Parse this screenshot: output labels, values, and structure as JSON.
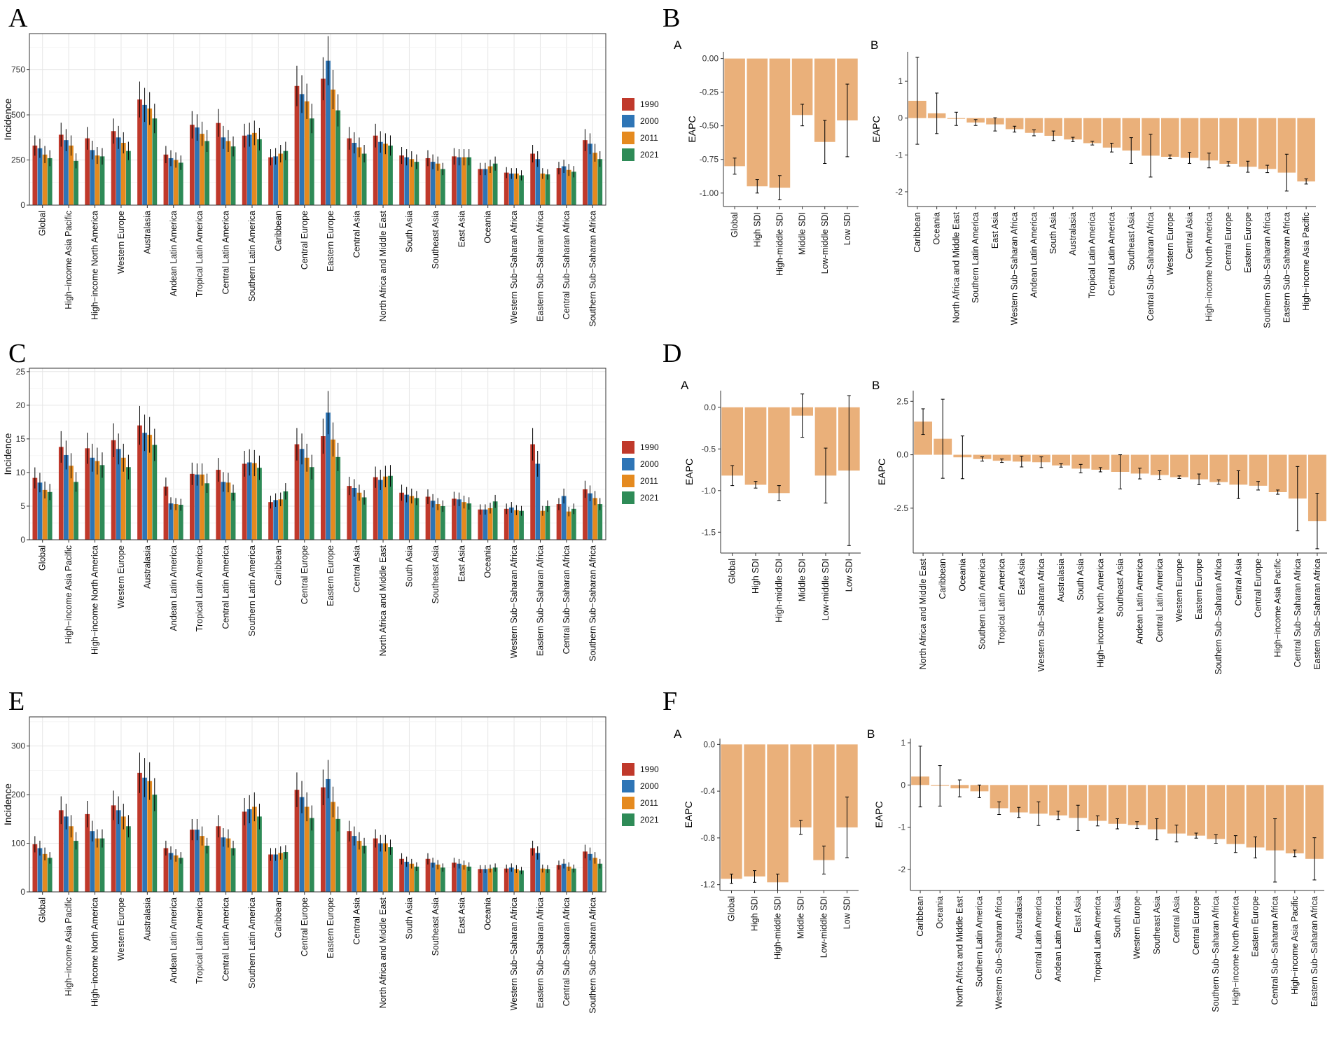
{
  "colors": {
    "1990": "#c0392b",
    "2000": "#2e75b6",
    "2011": "#e58a1f",
    "2021": "#2e8b57",
    "eapc": "#eab07a"
  },
  "panel_letters": [
    "A",
    "B",
    "C",
    "D",
    "E",
    "F"
  ],
  "sub_letters": [
    "A",
    "B",
    "A",
    "B",
    "A",
    "B"
  ],
  "chart_data": [
    {
      "type": "bar",
      "panel": "A",
      "ylabel": "Incidence",
      "ylim": [
        0,
        950
      ],
      "yticks": [
        0,
        250,
        500,
        750
      ],
      "legend": [
        "1990",
        "2000",
        "2011",
        "2021"
      ],
      "categories": [
        "Global",
        "High−income Asia Pacific",
        "High−income North America",
        "Western Europe",
        "Australasia",
        "Andean Latin America",
        "Tropical Latin America",
        "Central Latin America",
        "Southern Latin America",
        "Caribbean",
        "Central Europe",
        "Eastern Europe",
        "Central Asia",
        "North Africa and Middle East",
        "South Asia",
        "Southeast Asia",
        "East Asia",
        "Oceania",
        "Western Sub−Saharan Africa",
        "Eastern Sub−Saharan Africa",
        "Central Sub−Saharan Africa",
        "Southern Sub−Saharan Africa"
      ],
      "series": [
        {
          "name": "1990",
          "values": [
            330,
            390,
            370,
            410,
            585,
            280,
            445,
            455,
            385,
            265,
            660,
            700,
            370,
            385,
            275,
            260,
            270,
            200,
            180,
            285,
            205,
            360
          ]
        },
        {
          "name": "2000",
          "values": [
            315,
            360,
            305,
            375,
            555,
            260,
            430,
            375,
            390,
            270,
            615,
            800,
            345,
            350,
            265,
            240,
            265,
            200,
            175,
            255,
            215,
            340
          ]
        },
        {
          "name": "2011",
          "values": [
            280,
            330,
            275,
            345,
            535,
            250,
            395,
            355,
            400,
            285,
            575,
            640,
            320,
            340,
            255,
            230,
            265,
            215,
            175,
            175,
            195,
            290
          ]
        },
        {
          "name": "2021",
          "values": [
            260,
            245,
            270,
            300,
            480,
            235,
            355,
            325,
            365,
            300,
            480,
            525,
            285,
            330,
            240,
            200,
            265,
            230,
            165,
            170,
            185,
            255
          ]
        }
      ]
    },
    {
      "type": "bar",
      "panel": "B-A",
      "ylabel": "EAPC",
      "ylim": [
        -1.1,
        0.05
      ],
      "yticks": [
        0,
        -0.25,
        -0.5,
        -0.75,
        -1.0
      ],
      "ytick_labels": [
        "0.00",
        "-0.25",
        "-0.50",
        "-0.75",
        "-1.00"
      ],
      "categories": [
        "Global",
        "High SDI",
        "High-middle SDI",
        "Middle SDI",
        "Low-middle SDI",
        "Low SDI"
      ],
      "values": [
        -0.8,
        -0.95,
        -0.96,
        -0.42,
        -0.62,
        -0.46
      ],
      "err": [
        0.06,
        0.05,
        0.09,
        0.08,
        0.16,
        0.27
      ]
    },
    {
      "type": "bar",
      "panel": "B-B",
      "ylabel": "EAPC",
      "ylim": [
        -2.4,
        1.8
      ],
      "yticks": [
        1,
        0,
        -1,
        -2
      ],
      "ytick_labels": [
        "1",
        "0",
        "-1",
        "-2"
      ],
      "categories": [
        "Caribbean",
        "Oceania",
        "North Africa and Middle East",
        "Southern Latin America",
        "East Asia",
        "Western Sub−Saharan Africa",
        "Andean Latin America",
        "South Asia",
        "Australasia",
        "Tropical Latin America",
        "Central Latin America",
        "Southeast Asia",
        "Central Sub−Saharan Africa",
        "Western Europe",
        "Central Asia",
        "High−income North America",
        "Central Europe",
        "Eastern Europe",
        "Southern Sub−Saharan Africa",
        "Eastern Sub−Saharan Africa",
        "High−income Asia Pacific"
      ],
      "values": [
        0.47,
        0.13,
        -0.02,
        -0.12,
        -0.17,
        -0.3,
        -0.4,
        -0.48,
        -0.58,
        -0.68,
        -0.8,
        -0.88,
        -1.02,
        -1.05,
        -1.08,
        -1.15,
        -1.24,
        -1.32,
        -1.38,
        -1.48,
        -1.72
      ],
      "err": [
        1.18,
        0.55,
        0.18,
        0.08,
        0.18,
        0.08,
        0.08,
        0.13,
        0.06,
        0.05,
        0.12,
        0.35,
        0.58,
        0.05,
        0.15,
        0.2,
        0.06,
        0.15,
        0.1,
        0.5,
        0.07
      ]
    },
    {
      "type": "bar",
      "panel": "C",
      "ylabel": "Incidence",
      "ylim": [
        0,
        25.5
      ],
      "yticks": [
        0,
        5,
        10,
        15,
        20,
        25
      ],
      "legend": [
        "1990",
        "2000",
        "2011",
        "2021"
      ],
      "categories": [
        "Global",
        "High−income Asia Pacific",
        "High−income North America",
        "Western Europe",
        "Australasia",
        "Andean Latin America",
        "Tropical Latin America",
        "Central Latin America",
        "Southern Latin America",
        "Caribbean",
        "Central Europe",
        "Eastern Europe",
        "Central Asia",
        "North Africa and Middle East",
        "South Asia",
        "Southeast Asia",
        "East Asia",
        "Oceania",
        "Western Sub−Saharan Africa",
        "Eastern Sub−Saharan Africa",
        "Central Sub−Saharan Africa",
        "Southern Sub−Saharan Africa"
      ],
      "series": [
        {
          "name": "1990",
          "values": [
            9.2,
            13.8,
            13.6,
            14.8,
            17.0,
            7.9,
            9.8,
            10.4,
            11.3,
            5.6,
            14.2,
            15.4,
            8.0,
            9.3,
            7.0,
            6.4,
            6.1,
            4.5,
            4.6,
            14.2,
            5.3,
            7.5
          ]
        },
        {
          "name": "2000",
          "values": [
            8.5,
            12.6,
            12.2,
            13.5,
            15.9,
            5.4,
            9.7,
            8.6,
            11.5,
            5.9,
            13.5,
            18.9,
            7.7,
            8.9,
            6.7,
            5.8,
            6.0,
            4.5,
            4.8,
            11.3,
            6.5,
            6.9
          ]
        },
        {
          "name": "2011",
          "values": [
            7.4,
            11.0,
            11.7,
            12.2,
            15.6,
            5.3,
            9.7,
            8.5,
            11.4,
            6.0,
            12.2,
            14.9,
            7.0,
            9.4,
            6.5,
            5.3,
            5.6,
            4.7,
            4.4,
            4.3,
            4.2,
            6.2
          ]
        },
        {
          "name": "2021",
          "values": [
            7.1,
            8.6,
            11.1,
            10.8,
            14.1,
            5.2,
            8.4,
            7.0,
            10.7,
            7.2,
            10.8,
            12.3,
            6.3,
            9.5,
            6.2,
            5.0,
            5.4,
            5.7,
            4.3,
            5.0,
            4.6,
            5.3
          ]
        }
      ]
    },
    {
      "type": "bar",
      "panel": "D-A",
      "ylabel": "EAPC",
      "ylim": [
        -1.75,
        0.2
      ],
      "yticks": [
        0,
        -0.5,
        -1.0,
        -1.5
      ],
      "ytick_labels": [
        "0.0",
        "-0.5",
        "-1.0",
        "-1.5"
      ],
      "categories": [
        "Global",
        "High SDI",
        "High-middle SDI",
        "Middle SDI",
        "Low-middle SDI",
        "Low SDI"
      ],
      "values": [
        -0.82,
        -0.93,
        -1.03,
        -0.1,
        -0.82,
        -0.76
      ],
      "err": [
        0.12,
        0.04,
        0.09,
        0.26,
        0.33,
        0.9
      ]
    },
    {
      "type": "bar",
      "panel": "D-B",
      "ylabel": "EAPC",
      "ylim": [
        -4.6,
        3.0
      ],
      "yticks": [
        2.5,
        0,
        -2.5
      ],
      "ytick_labels": [
        "2.5",
        "0.0",
        "-2.5"
      ],
      "categories": [
        "North Africa and Middle East",
        "Caribbean",
        "Oceania",
        "Southern Latin America",
        "Tropical Latin America",
        "East Asia",
        "Western Sub−Saharan Africa",
        "Australasia",
        "South Asia",
        "High−income North America",
        "Southeast Asia",
        "Andean Latin America",
        "Central Latin America",
        "Western Europe",
        "Eastern Europe",
        "Southern Sub−Saharan Africa",
        "Central Asia",
        "Central Europe",
        "High−income Asia Pacific",
        "Central Sub−Saharan Africa",
        "Eastern Sub−Saharan Africa"
      ],
      "values": [
        1.55,
        0.75,
        -0.12,
        -0.2,
        -0.28,
        -0.32,
        -0.35,
        -0.5,
        -0.65,
        -0.7,
        -0.8,
        -0.88,
        -0.95,
        -1.05,
        -1.15,
        -1.28,
        -1.4,
        -1.45,
        -1.75,
        -2.05,
        -3.1
      ],
      "err": [
        0.6,
        1.85,
        1.0,
        0.1,
        0.08,
        0.25,
        0.25,
        0.08,
        0.2,
        0.1,
        0.8,
        0.25,
        0.2,
        0.06,
        0.25,
        0.1,
        0.65,
        0.2,
        0.1,
        1.5,
        1.3
      ]
    },
    {
      "type": "bar",
      "panel": "E",
      "ylabel": "Incidence",
      "ylim": [
        0,
        360
      ],
      "yticks": [
        0,
        100,
        200,
        300
      ],
      "legend": [
        "1990",
        "2000",
        "2011",
        "2021"
      ],
      "categories": [
        "Global",
        "High−income Asia Pacific",
        "High−income North America",
        "Western Europe",
        "Australasia",
        "Andean Latin America",
        "Tropical Latin America",
        "Central Latin America",
        "Southern Latin America",
        "Caribbean",
        "Central Europe",
        "Eastern Europe",
        "Central Asia",
        "North Africa and Middle East",
        "South Asia",
        "Southeast Asia",
        "East Asia",
        "Oceania",
        "Western Sub−Saharan Africa",
        "Eastern Sub−Saharan Africa",
        "Central Sub−Saharan Africa",
        "Southern Sub−Saharan Africa"
      ],
      "series": [
        {
          "name": "1990",
          "values": [
            98,
            168,
            160,
            178,
            245,
            90,
            128,
            135,
            165,
            77,
            210,
            215,
            125,
            110,
            68,
            68,
            60,
            47,
            48,
            90,
            55,
            83
          ]
        },
        {
          "name": "2000",
          "values": [
            90,
            155,
            125,
            168,
            235,
            80,
            128,
            112,
            170,
            77,
            195,
            232,
            115,
            100,
            62,
            60,
            58,
            47,
            50,
            80,
            58,
            78
          ]
        },
        {
          "name": "2011",
          "values": [
            78,
            135,
            110,
            155,
            228,
            75,
            115,
            110,
            175,
            80,
            175,
            185,
            105,
            100,
            58,
            56,
            55,
            48,
            47,
            48,
            52,
            70
          ]
        },
        {
          "name": "2021",
          "values": [
            70,
            105,
            110,
            135,
            200,
            70,
            95,
            90,
            155,
            82,
            152,
            150,
            95,
            92,
            52,
            50,
            52,
            50,
            44,
            47,
            48,
            58
          ]
        }
      ]
    },
    {
      "type": "bar",
      "panel": "F-A",
      "ylabel": "EAPC",
      "ylim": [
        -1.25,
        0.05
      ],
      "yticks": [
        0,
        -0.4,
        -0.8,
        -1.2
      ],
      "ytick_labels": [
        "0.0",
        "-0.4",
        "-0.8",
        "-1.2"
      ],
      "categories": [
        "Global",
        "High SDI",
        "High-middle SDI",
        "Middle SDI",
        "Low-middle SDI",
        "Low SDI"
      ],
      "values": [
        -1.15,
        -1.13,
        -1.18,
        -0.71,
        -0.99,
        -0.71
      ],
      "err": [
        0.04,
        0.05,
        0.07,
        0.06,
        0.12,
        0.26
      ]
    },
    {
      "type": "bar",
      "panel": "F-B",
      "ylabel": "EAPC",
      "ylim": [
        -2.5,
        1.1
      ],
      "yticks": [
        1,
        0,
        -1,
        -2
      ],
      "ytick_labels": [
        "1",
        "0",
        "-1",
        "-2"
      ],
      "categories": [
        "Caribbean",
        "Oceania",
        "North Africa and Middle East",
        "Southern Latin America",
        "Western Sub−Saharan Africa",
        "Australasia",
        "Central Latin America",
        "Andean Latin America",
        "East Asia",
        "Tropical Latin America",
        "South Asia",
        "Western Europe",
        "Southeast Asia",
        "Central Asia",
        "Central Europe",
        "Southern Sub−Saharan Africa",
        "High−income North America",
        "Eastern Europe",
        "Central Sub−Saharan Africa",
        "High−income Asia Pacific",
        "Eastern Sub−Saharan Africa"
      ],
      "values": [
        0.2,
        -0.02,
        -0.08,
        -0.15,
        -0.55,
        -0.65,
        -0.68,
        -0.72,
        -0.78,
        -0.85,
        -0.92,
        -0.95,
        -1.05,
        -1.15,
        -1.2,
        -1.28,
        -1.4,
        -1.48,
        -1.55,
        -1.62,
        -1.75
      ],
      "err": [
        0.72,
        0.48,
        0.2,
        0.15,
        0.15,
        0.12,
        0.28,
        0.1,
        0.3,
        0.12,
        0.12,
        0.08,
        0.25,
        0.2,
        0.06,
        0.1,
        0.2,
        0.25,
        0.75,
        0.08,
        0.5
      ]
    }
  ]
}
